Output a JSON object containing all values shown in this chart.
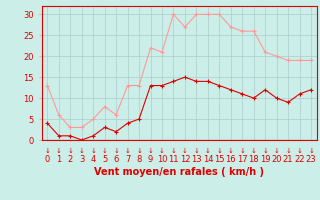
{
  "x": [
    0,
    1,
    2,
    3,
    4,
    5,
    6,
    7,
    8,
    9,
    10,
    11,
    12,
    13,
    14,
    15,
    16,
    17,
    18,
    19,
    20,
    21,
    22,
    23
  ],
  "vent_moyen": [
    4,
    1,
    1,
    0,
    1,
    3,
    2,
    4,
    5,
    13,
    13,
    14,
    15,
    14,
    14,
    13,
    12,
    11,
    10,
    12,
    10,
    9,
    11,
    12
  ],
  "rafales": [
    13,
    6,
    3,
    3,
    5,
    8,
    6,
    13,
    13,
    22,
    21,
    30,
    27,
    30,
    30,
    30,
    27,
    26,
    26,
    21,
    20,
    19,
    19,
    19
  ],
  "color_moyen": "#dd0000",
  "color_rafales": "#ff9999",
  "bg_color": "#cceee8",
  "grid_color": "#aacccc",
  "xlabel": "Vent moyen/en rafales ( km/h )",
  "xlabel_color": "#dd0000",
  "xlabel_fontsize": 7,
  "ylabel_color": "#dd0000",
  "ylim": [
    0,
    32
  ],
  "yticks": [
    0,
    5,
    10,
    15,
    20,
    25,
    30
  ],
  "xticks": [
    0,
    1,
    2,
    3,
    4,
    5,
    6,
    7,
    8,
    9,
    10,
    11,
    12,
    13,
    14,
    15,
    16,
    17,
    18,
    19,
    20,
    21,
    22,
    23
  ],
  "tick_fontsize": 6,
  "marker": "+",
  "markersize": 3,
  "linewidth": 0.8,
  "arrow_char": "↓"
}
